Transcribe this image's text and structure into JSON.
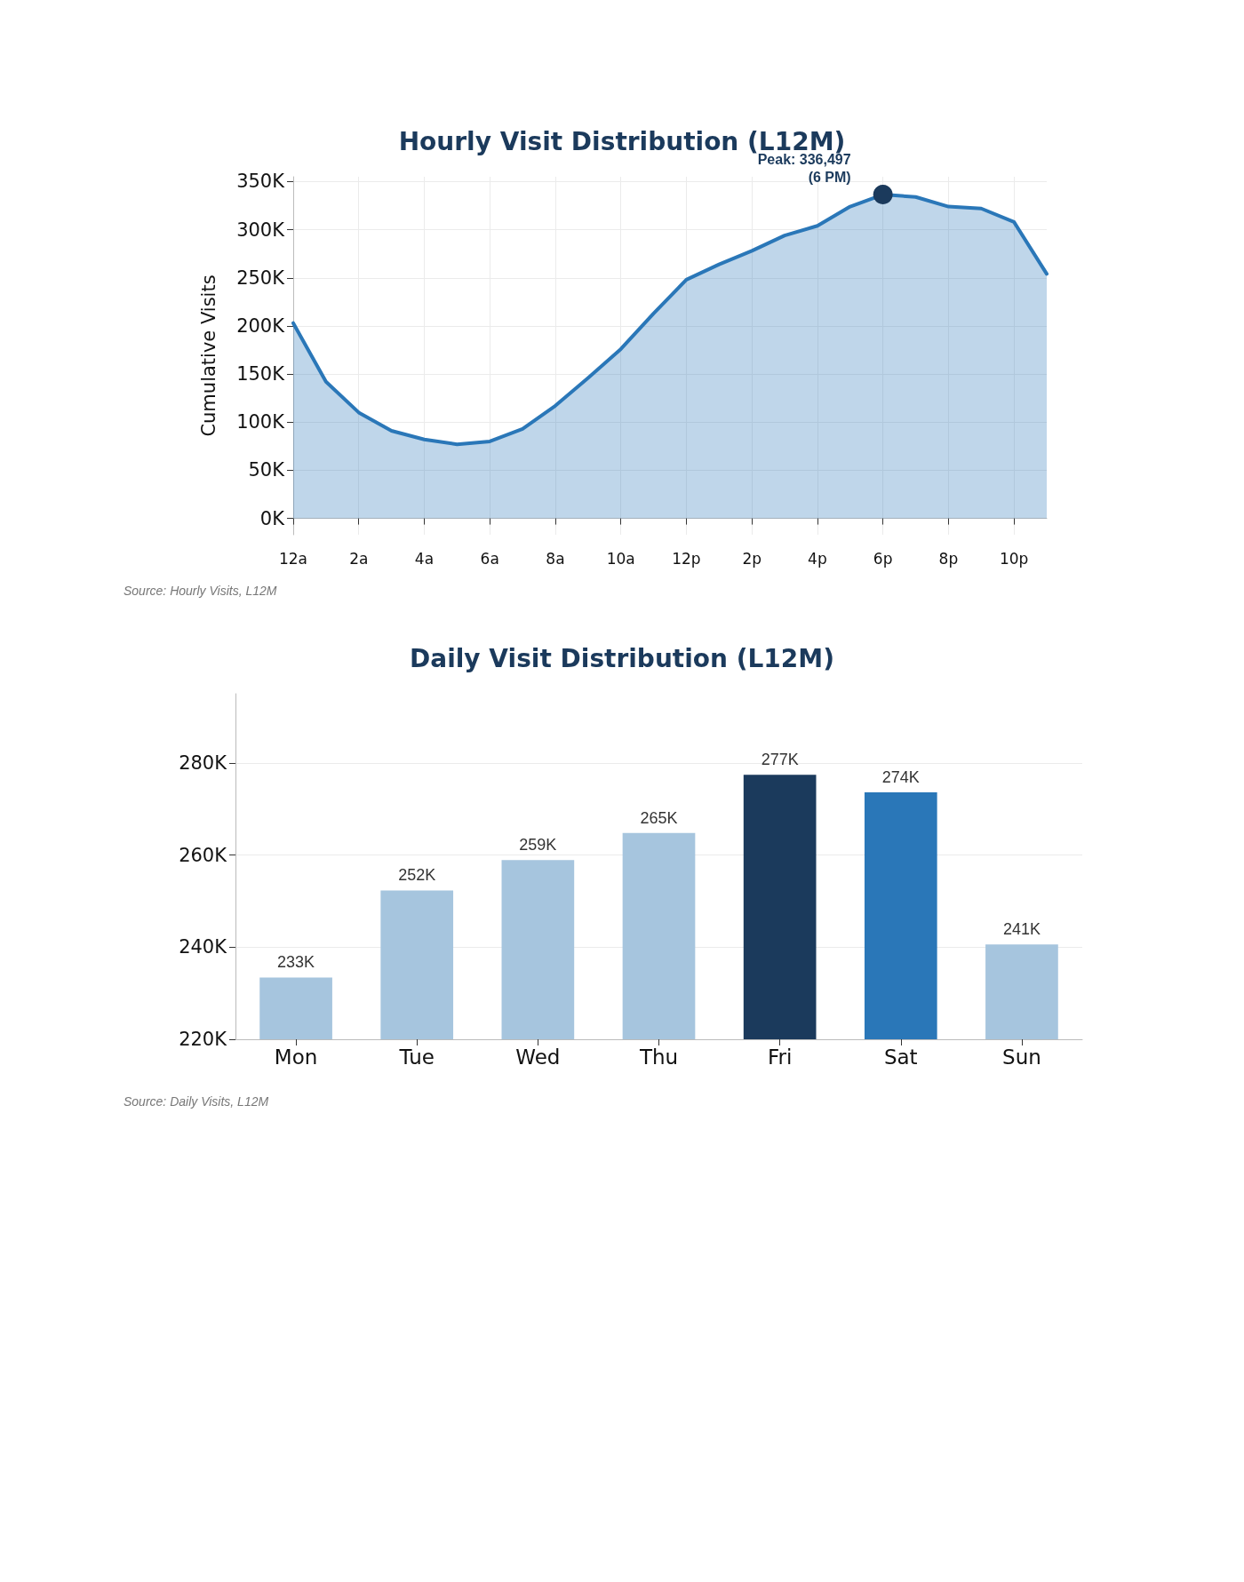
{
  "chart_data": [
    {
      "type": "area",
      "title": "Hourly Visit Distribution (L12M)",
      "ylabel": "Cumulative Visits",
      "categories": [
        "12a",
        null,
        "2a",
        null,
        "4a",
        null,
        "6a",
        null,
        "8a",
        null,
        "10a",
        null,
        "12p",
        null,
        "2p",
        null,
        "4p",
        null,
        "6p",
        null,
        "8p",
        null,
        "10p",
        null
      ],
      "series": [
        {
          "color": "#2a77b8",
          "values": [
            203000,
            142000,
            110000,
            91000,
            82000,
            77000,
            80000,
            93000,
            117000,
            146000,
            176000,
            213000,
            248000,
            264000,
            278000,
            294000,
            304000,
            324000,
            336497,
            334000,
            324000,
            322000,
            308000,
            254000
          ]
        }
      ],
      "ylim": [
        -17000,
        355000
      ],
      "yticks": [
        {
          "value": 0,
          "label": "0K"
        },
        {
          "value": 50000,
          "label": "50K"
        },
        {
          "value": 100000,
          "label": "100K"
        },
        {
          "value": 150000,
          "label": "150K"
        },
        {
          "value": 200000,
          "label": "200K"
        },
        {
          "value": 250000,
          "label": "250K"
        },
        {
          "value": 300000,
          "label": "300K"
        },
        {
          "value": 350000,
          "label": "350K"
        }
      ],
      "grid": true,
      "marker": "none",
      "annotations": [
        {
          "text": "Peak: 336,497\n(6 PM)",
          "x": "6p",
          "y": 336497
        },
        "Source: Hourly Visits, L12M"
      ]
    },
    {
      "type": "bar",
      "title": "Daily Visit Distribution (L12M)",
      "categories": [
        "Mon",
        "Tue",
        "Wed",
        "Thu",
        "Fri",
        "Sat",
        "Sun"
      ],
      "values": [
        233400,
        252300,
        258900,
        264800,
        277400,
        273600,
        240600
      ],
      "colors": [
        "#a6c5de",
        "#a6c5de",
        "#a6c5de",
        "#a6c5de",
        "#1b3a5c",
        "#2a77b8",
        "#a6c5de"
      ],
      "value_labels": [
        "233K",
        "252K",
        "259K",
        "265K",
        "277K",
        "274K",
        "241K"
      ],
      "ylim": [
        220000,
        295000
      ],
      "yticks": [
        {
          "value": 220000,
          "label": "220K"
        },
        {
          "value": 240000,
          "label": "240K"
        },
        {
          "value": 260000,
          "label": "260K"
        },
        {
          "value": 280000,
          "label": "280K"
        }
      ],
      "grid": true,
      "annotations": [
        "Source: Daily Visits, L12M"
      ]
    }
  ]
}
